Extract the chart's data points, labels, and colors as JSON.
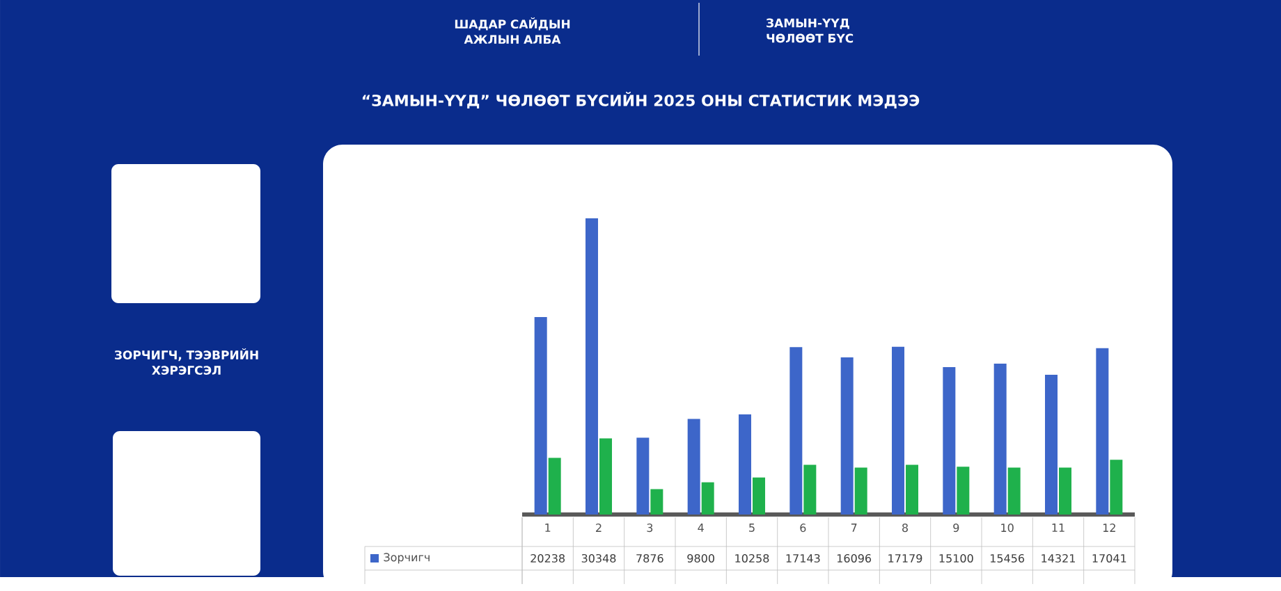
{
  "chart_data": {
    "type": "bar",
    "title": "“ЗАМЫН-ҮҮД” ЧӨЛӨӨТ БҮСИЙН 2025 ОНЫ СТАТИСТИК МЭДЭЭ",
    "annotations": [
      "ШАДАР САЙДЫН АЖЛЫН АЛБА",
      "ЗАМЫН-ҮҮД ЧӨЛӨӨТ БҮС",
      "ЗОРЧИГЧ, ТЭЭВРИЙН ХЭРЭГСЭЛ"
    ],
    "categories": [
      "1",
      "2",
      "3",
      "4",
      "5",
      "6",
      "7",
      "8",
      "9",
      "10",
      "11",
      "12"
    ],
    "series": [
      {
        "name": "Зорчигч",
        "color": "#3d66c9",
        "values": [
          20238,
          30348,
          7876,
          9800,
          10258,
          17143,
          16096,
          17179,
          15100,
          15456,
          14321,
          17041
        ],
        "value_labels": [
          "20238",
          "30348",
          "7876",
          "9800",
          "10258",
          "17143",
          "16096",
          "17179",
          "15100",
          "15456",
          "14321",
          "17041"
        ]
      },
      {
        "color": "#1fb14c",
        "values": [
          5800,
          7800,
          2600,
          3300,
          3800,
          5100,
          4800,
          5100,
          4900,
          4800,
          4800,
          5600
        ]
      }
    ],
    "legend": "bottom"
  }
}
